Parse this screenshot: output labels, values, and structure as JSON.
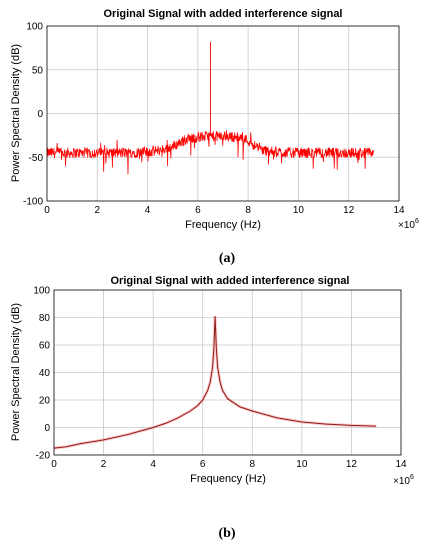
{
  "colors": {
    "signal": "#ff0000",
    "trace": "#8b1a1a",
    "grid": "#c8c8c8"
  },
  "chart_data": [
    {
      "type": "line",
      "panel_label": "(a)",
      "title": "Original Signal with added interference signal",
      "xlabel": "Frequency (Hz)",
      "ylabel": "Power Spectral Density (dB)",
      "x_multiplier": "×10",
      "x_multiplier_exp": "6",
      "xlim": [
        0,
        14
      ],
      "ylim": [
        -100,
        100
      ],
      "xticks": [
        0,
        2,
        4,
        6,
        8,
        10,
        12,
        14
      ],
      "yticks": [
        -100,
        -50,
        0,
        50,
        100
      ],
      "grid": true,
      "series": [
        {
          "x": [
            0,
            1,
            2,
            3,
            4,
            4.5,
            5,
            5.3,
            5.6,
            6,
            6.5,
            7,
            7.5,
            7.8,
            8,
            8.3,
            8.6,
            9,
            10,
            11,
            12,
            13
          ],
          "y": [
            -45,
            -45,
            -45,
            -45,
            -44,
            -42,
            -38,
            -33,
            -29,
            -27,
            -26,
            -26,
            -27,
            -28,
            -31,
            -37,
            -42,
            -44,
            -45,
            -45,
            -45,
            -45
          ],
          "noise_amplitude": 6
        }
      ],
      "peak": {
        "x": 6.5,
        "y": 82
      }
    },
    {
      "type": "line",
      "panel_label": "(b)",
      "title": "Original Signal with added interference signal",
      "xlabel": "Frequency (Hz)",
      "ylabel": "Power Spectral Density (dB)",
      "x_multiplier": "×10",
      "x_multiplier_exp": "6",
      "xlim": [
        0,
        14
      ],
      "ylim": [
        -20,
        100
      ],
      "xticks": [
        0,
        2,
        4,
        6,
        8,
        10,
        12,
        14
      ],
      "yticks": [
        -20,
        0,
        20,
        40,
        60,
        80,
        100
      ],
      "grid": true,
      "series": [
        {
          "x": [
            0,
            0.5,
            1,
            2,
            3,
            4,
            4.5,
            5,
            5.5,
            5.8,
            6,
            6.2,
            6.3,
            6.4,
            6.45,
            6.5,
            6.55,
            6.6,
            6.7,
            6.8,
            7,
            7.5,
            8,
            9,
            10,
            11,
            12,
            13
          ],
          "y": [
            -15,
            -14,
            -12,
            -9,
            -5,
            0,
            3,
            7,
            12,
            16,
            20,
            27,
            33,
            44,
            58,
            81,
            58,
            44,
            33,
            27,
            21,
            15,
            12,
            7,
            4,
            2.5,
            1.5,
            1
          ]
        }
      ]
    }
  ]
}
